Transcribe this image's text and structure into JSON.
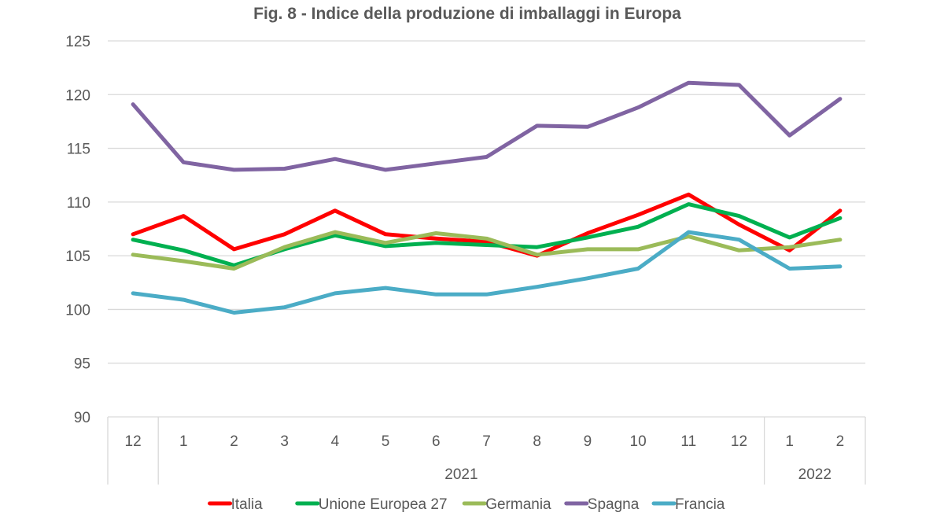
{
  "chart_data": {
    "type": "line",
    "title": "Fig. 8 - Indice della produzione di imballaggi in Europa",
    "xlabel": "",
    "ylabel": "",
    "ylim": [
      90,
      125
    ],
    "yticks": [
      90,
      95,
      100,
      105,
      110,
      115,
      120,
      125
    ],
    "grid": true,
    "legend_position": "bottom",
    "categories": [
      "12",
      "1",
      "2",
      "3",
      "4",
      "5",
      "6",
      "7",
      "8",
      "9",
      "10",
      "11",
      "12",
      "1",
      "2"
    ],
    "year_groups": [
      {
        "label": "",
        "span": 1
      },
      {
        "label": "2021",
        "span": 12
      },
      {
        "label": "2022",
        "span": 2
      }
    ],
    "series": [
      {
        "name": "Italia",
        "color": "#ff0000",
        "values": [
          107.0,
          108.7,
          105.6,
          107.0,
          109.2,
          107.0,
          106.6,
          106.3,
          105.0,
          107.1,
          108.8,
          110.7,
          107.9,
          105.5,
          109.2
        ]
      },
      {
        "name": "Unione Europea 27",
        "color": "#00b050",
        "values": [
          106.5,
          105.5,
          104.1,
          105.6,
          106.9,
          105.9,
          106.2,
          106.0,
          105.8,
          106.7,
          107.7,
          109.8,
          108.7,
          106.7,
          108.5
        ]
      },
      {
        "name": "Germania",
        "color": "#9bbb59",
        "values": [
          105.1,
          104.5,
          103.8,
          105.8,
          107.2,
          106.2,
          107.1,
          106.6,
          105.1,
          105.6,
          105.6,
          106.8,
          105.5,
          105.8,
          106.5
        ]
      },
      {
        "name": "Spagna",
        "color": "#8064a2",
        "values": [
          119.1,
          113.7,
          113.0,
          113.1,
          114.0,
          113.0,
          113.6,
          114.2,
          117.1,
          117.0,
          118.8,
          121.1,
          120.9,
          116.2,
          119.6
        ]
      },
      {
        "name": "Francia",
        "color": "#4bacc6",
        "values": [
          101.5,
          100.9,
          99.7,
          100.2,
          101.5,
          102.0,
          101.4,
          101.4,
          102.1,
          102.9,
          103.8,
          107.2,
          106.5,
          103.8,
          104.0
        ]
      }
    ]
  }
}
